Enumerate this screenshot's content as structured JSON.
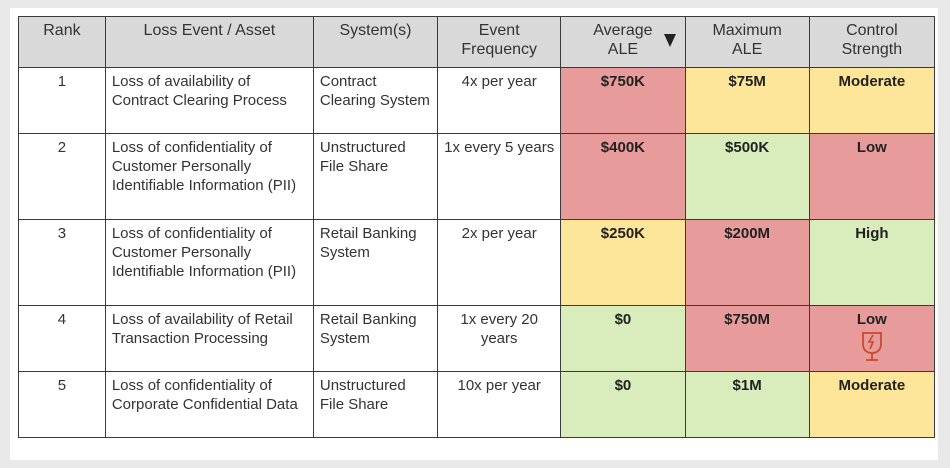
{
  "colors": {
    "red": "#e79b9b",
    "yellow": "#fde59a",
    "green": "#d8edbb",
    "header": "#d9d9d9",
    "icon": "#c9482f"
  },
  "headers": {
    "rank": "Rank",
    "loss_event": "Loss Event / Asset",
    "systems": "System(s)",
    "frequency_line1": "Event",
    "frequency_line2": "Frequency",
    "avg_ale_line1": "Average",
    "avg_ale_line2": "ALE",
    "max_ale_line1": "Maximum",
    "max_ale_line2": "ALE",
    "control_line1": "Control",
    "control_line2": "Strength"
  },
  "sort": {
    "column": "Average ALE",
    "direction": "descending"
  },
  "rows": [
    {
      "rank": "1",
      "loss_event": "Loss of availability of Contract Clearing Process",
      "systems": "Contract Clearing System",
      "frequency": "4x per year",
      "avg_ale": "$750K",
      "avg_color": "red",
      "max_ale": "$75M",
      "max_color": "yellow",
      "control": "Moderate",
      "control_color": "yellow"
    },
    {
      "rank": "2",
      "loss_event": "Loss of confidentiality of Customer Personally Identifiable Information (PII)",
      "systems": "Unstructured File Share",
      "frequency": "1x every 5 years",
      "avg_ale": "$400K",
      "avg_color": "red",
      "max_ale": "$500K",
      "max_color": "green",
      "control": "Low",
      "control_color": "red"
    },
    {
      "rank": "3",
      "loss_event": "Loss of confidentiality of Customer Personally Identifiable Information (PII)",
      "systems": "Retail Banking System",
      "frequency": "2x per year",
      "avg_ale": "$250K",
      "avg_color": "yellow",
      "max_ale": "$200M",
      "max_color": "red",
      "control": "High",
      "control_color": "green"
    },
    {
      "rank": "4",
      "loss_event": "Loss of availability of Retail Transaction Processing",
      "systems": "Retail Banking System",
      "frequency": "1x every 20 years",
      "avg_ale": "$0",
      "avg_color": "green",
      "max_ale": "$750M",
      "max_color": "red",
      "control": "Low",
      "control_color": "red",
      "control_icon": "fragile-glass-icon"
    },
    {
      "rank": "5",
      "loss_event": "Loss of confidentiality of Corporate Confidential Data",
      "systems": "Unstructured File Share",
      "frequency": "10x per year",
      "avg_ale": "$0",
      "avg_color": "green",
      "max_ale": "$1M",
      "max_color": "green",
      "control": "Moderate",
      "control_color": "yellow"
    }
  ]
}
